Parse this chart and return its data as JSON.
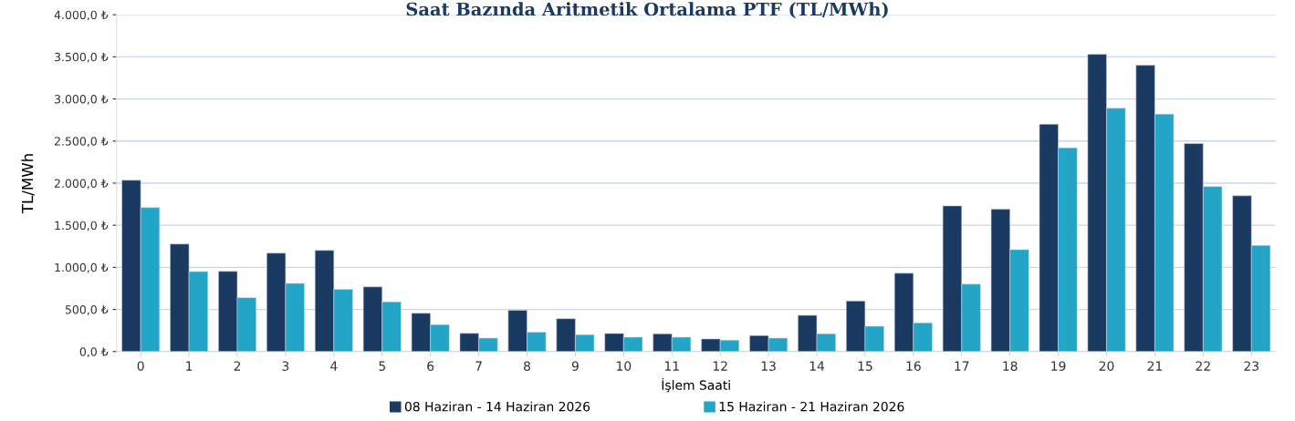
{
  "chart_data": {
    "type": "bar",
    "title": "Saat Bazında Aritmetik Ortalama PTF (TL/MWh)",
    "xlabel": "İşlem Saati",
    "ylabel": "TL/MWh",
    "categories": [
      "0",
      "1",
      "2",
      "3",
      "4",
      "5",
      "6",
      "7",
      "8",
      "9",
      "10",
      "11",
      "12",
      "13",
      "14",
      "15",
      "16",
      "17",
      "18",
      "19",
      "20",
      "21",
      "22",
      "23"
    ],
    "series": [
      {
        "name": "08 Haziran - 14 Haziran 2026",
        "color": "#1b3a62",
        "values": [
          2035,
          1277,
          952,
          1169,
          1201,
          768,
          455,
          216,
          490,
          390,
          215,
          210,
          150,
          190,
          430,
          600,
          930,
          1730,
          1690,
          2700,
          3530,
          3400,
          2470,
          1850
        ]
      },
      {
        "name": "15 Haziran - 21 Haziran 2026",
        "color": "#22a5c6",
        "values": [
          1710,
          950,
          640,
          810,
          740,
          590,
          320,
          160,
          230,
          200,
          170,
          170,
          135,
          160,
          210,
          300,
          340,
          800,
          1210,
          2420,
          2890,
          2820,
          1960,
          1260
        ]
      }
    ],
    "ylim": [
      0,
      4000
    ],
    "yticks": [
      {
        "value": 0,
        "label": "0,0 ₺"
      },
      {
        "value": 500,
        "label": "500,0 ₺"
      },
      {
        "value": 1000,
        "label": "1.000,0 ₺"
      },
      {
        "value": 1500,
        "label": "1.500,0 ₺"
      },
      {
        "value": 2000,
        "label": "2.000,0 ₺"
      },
      {
        "value": 2500,
        "label": "2.500,0 ₺"
      },
      {
        "value": 3000,
        "label": "3.000,0 ₺"
      },
      {
        "value": 3500,
        "label": "3.500,0 ₺"
      },
      {
        "value": 4000,
        "label": "4.000,0 ₺"
      }
    ],
    "grid": "y",
    "legend": "bottom"
  }
}
